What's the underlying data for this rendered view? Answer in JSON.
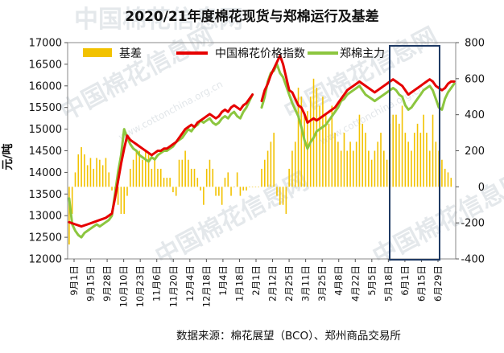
{
  "chart_data": {
    "type": "bar+line",
    "title": "2020/21年度棉花现货与郑棉运行及基差",
    "ylabel": "元/吨",
    "ylim_left": [
      12000,
      17000
    ],
    "yticks_left": [
      12000,
      12500,
      13000,
      13500,
      14000,
      14500,
      15000,
      15500,
      16000,
      16500,
      17000
    ],
    "ylim_right": [
      -400,
      800
    ],
    "yticks_right": [
      -400,
      -200,
      0,
      200,
      400,
      600,
      800
    ],
    "x_tick_labels": [
      "9月1日",
      "9月15日",
      "9月28日",
      "10月10日",
      "10月23日",
      "11月6日",
      "11月20日",
      "12月4日",
      "12月18日",
      "1月4日",
      "1月18日",
      "2月1日",
      "2月12日",
      "2月25日",
      "3月11日",
      "3月25日",
      "4月8日",
      "4月22日",
      "5月5日",
      "5月18日",
      "6月1日",
      "6月15日",
      "6月29日"
    ],
    "legend": [
      "基差",
      "中国棉花价格指数",
      "郑棉主力"
    ],
    "legend_position": "top",
    "source": "数据来源：棉花展望（BCO）、郑州商品交易所",
    "watermark": "中国棉花信息网",
    "watermark_url": "www.cottonchina.org.cn",
    "highlight_box": {
      "x_from": "6月1日",
      "x_to": "6月29日"
    },
    "series": [
      {
        "name": "中国棉花价格指数",
        "axis": "left",
        "color": "#e60000",
        "points": [
          [
            0,
            12850
          ],
          [
            2,
            12800
          ],
          [
            4,
            12750
          ],
          [
            6,
            12800
          ],
          [
            8,
            12850
          ],
          [
            10,
            12900
          ],
          [
            12,
            12950
          ],
          [
            14,
            13050
          ],
          [
            15,
            13400
          ],
          [
            16,
            13800
          ],
          [
            17,
            14200
          ],
          [
            18,
            14550
          ],
          [
            19,
            14850
          ],
          [
            20,
            14750
          ],
          [
            21,
            14700
          ],
          [
            22,
            14650
          ],
          [
            23,
            14600
          ],
          [
            24,
            14550
          ],
          [
            25,
            14500
          ],
          [
            26,
            14450
          ],
          [
            27,
            14400
          ],
          [
            28,
            14450
          ],
          [
            29,
            14500
          ],
          [
            30,
            14500
          ],
          [
            31,
            14550
          ],
          [
            32,
            14550
          ],
          [
            33,
            14600
          ],
          [
            34,
            14650
          ],
          [
            35,
            14700
          ],
          [
            36,
            14800
          ],
          [
            37,
            14900
          ],
          [
            38,
            15000
          ],
          [
            39,
            15050
          ],
          [
            40,
            15100
          ],
          [
            41,
            15050
          ],
          [
            42,
            15150
          ],
          [
            43,
            15200
          ],
          [
            44,
            15250
          ],
          [
            45,
            15300
          ],
          [
            46,
            15350
          ],
          [
            47,
            15300
          ],
          [
            48,
            15250
          ],
          [
            49,
            15300
          ],
          [
            50,
            15400
          ],
          [
            51,
            15450
          ],
          [
            52,
            15400
          ],
          [
            53,
            15500
          ],
          [
            54,
            15550
          ],
          [
            55,
            15500
          ],
          [
            56,
            15450
          ],
          [
            57,
            15550
          ],
          [
            58,
            15600
          ],
          [
            59,
            15700
          ],
          [
            60,
            15800
          ],
          [
            null,
            null
          ],
          [
            63,
            15650
          ],
          [
            64,
            15900
          ],
          [
            65,
            16050
          ],
          [
            66,
            16250
          ],
          [
            67,
            16400
          ],
          [
            68,
            16550
          ],
          [
            69,
            16700
          ],
          [
            70,
            16500
          ],
          [
            71,
            16200
          ],
          [
            72,
            15900
          ],
          [
            73,
            15850
          ],
          [
            74,
            15700
          ],
          [
            75,
            15550
          ],
          [
            76,
            15500
          ],
          [
            77,
            15350
          ],
          [
            78,
            15150
          ],
          [
            79,
            15200
          ],
          [
            80,
            15250
          ],
          [
            81,
            15200
          ],
          [
            82,
            15250
          ],
          [
            83,
            15300
          ],
          [
            84,
            15350
          ],
          [
            85,
            15400
          ],
          [
            86,
            15450
          ],
          [
            87,
            15500
          ],
          [
            88,
            15600
          ],
          [
            89,
            15700
          ],
          [
            90,
            15800
          ],
          [
            91,
            15900
          ],
          [
            92,
            15950
          ],
          [
            93,
            16000
          ],
          [
            94,
            16050
          ],
          [
            95,
            16100
          ],
          [
            96,
            16050
          ],
          [
            97,
            16000
          ],
          [
            98,
            15950
          ],
          [
            99,
            15900
          ],
          [
            100,
            15850
          ],
          [
            101,
            15900
          ],
          [
            102,
            15950
          ],
          [
            103,
            16000
          ],
          [
            104,
            16050
          ],
          [
            105,
            16100
          ],
          [
            106,
            16150
          ],
          [
            107,
            16100
          ],
          [
            108,
            16050
          ],
          [
            109,
            16000
          ],
          [
            110,
            15900
          ],
          [
            111,
            15800
          ],
          [
            112,
            15850
          ],
          [
            113,
            15900
          ],
          [
            114,
            15950
          ],
          [
            115,
            16000
          ],
          [
            116,
            16050
          ],
          [
            117,
            16100
          ],
          [
            118,
            16150
          ],
          [
            119,
            16100
          ],
          [
            120,
            16000
          ],
          [
            121,
            15950
          ],
          [
            122,
            15900
          ],
          [
            123,
            15950
          ],
          [
            124,
            16050
          ],
          [
            125,
            16100
          ],
          [
            126,
            16100
          ]
        ]
      },
      {
        "name": "郑棉主力",
        "axis": "left",
        "color": "#8cc63f",
        "points": [
          [
            0,
            13400
          ],
          [
            1,
            12800
          ],
          [
            2,
            12650
          ],
          [
            3,
            12550
          ],
          [
            4,
            12500
          ],
          [
            5,
            12600
          ],
          [
            6,
            12650
          ],
          [
            7,
            12700
          ],
          [
            8,
            12750
          ],
          [
            9,
            12800
          ],
          [
            10,
            12750
          ],
          [
            11,
            12800
          ],
          [
            12,
            12850
          ],
          [
            13,
            12900
          ],
          [
            14,
            13000
          ],
          [
            15,
            13500
          ],
          [
            16,
            14000
          ],
          [
            17,
            14400
          ],
          [
            18,
            15000
          ],
          [
            19,
            14800
          ],
          [
            20,
            14650
          ],
          [
            21,
            14550
          ],
          [
            22,
            14500
          ],
          [
            23,
            14400
          ],
          [
            24,
            14350
          ],
          [
            25,
            14300
          ],
          [
            26,
            14250
          ],
          [
            27,
            14350
          ],
          [
            28,
            14300
          ],
          [
            29,
            14400
          ],
          [
            30,
            14450
          ],
          [
            31,
            14500
          ],
          [
            32,
            14500
          ],
          [
            33,
            14550
          ],
          [
            34,
            14600
          ],
          [
            35,
            14700
          ],
          [
            36,
            14750
          ],
          [
            37,
            14800
          ],
          [
            38,
            14900
          ],
          [
            39,
            15000
          ],
          [
            40,
            14950
          ],
          [
            41,
            15050
          ],
          [
            42,
            15100
          ],
          [
            43,
            15200
          ],
          [
            44,
            15150
          ],
          [
            45,
            15200
          ],
          [
            46,
            15250
          ],
          [
            47,
            15150
          ],
          [
            48,
            15100
          ],
          [
            49,
            15150
          ],
          [
            50,
            15250
          ],
          [
            51,
            15300
          ],
          [
            52,
            15250
          ],
          [
            53,
            15350
          ],
          [
            54,
            15400
          ],
          [
            55,
            15300
          ],
          [
            56,
            15250
          ],
          [
            57,
            15400
          ],
          [
            58,
            15500
          ],
          [
            59,
            15650
          ],
          [
            60,
            15800
          ],
          [
            null,
            null
          ],
          [
            63,
            15500
          ],
          [
            64,
            15750
          ],
          [
            65,
            16100
          ],
          [
            66,
            16300
          ],
          [
            67,
            16350
          ],
          [
            68,
            16500
          ],
          [
            69,
            16300
          ],
          [
            70,
            16200
          ],
          [
            71,
            16000
          ],
          [
            72,
            15800
          ],
          [
            73,
            15600
          ],
          [
            74,
            15450
          ],
          [
            75,
            15300
          ],
          [
            76,
            15050
          ],
          [
            77,
            14750
          ],
          [
            78,
            14550
          ],
          [
            79,
            14700
          ],
          [
            80,
            14800
          ],
          [
            81,
            14950
          ],
          [
            82,
            15000
          ],
          [
            83,
            15050
          ],
          [
            84,
            15100
          ],
          [
            85,
            15200
          ],
          [
            86,
            15300
          ],
          [
            87,
            15400
          ],
          [
            88,
            15500
          ],
          [
            89,
            15650
          ],
          [
            90,
            15700
          ],
          [
            91,
            15800
          ],
          [
            92,
            15850
          ],
          [
            93,
            15900
          ],
          [
            94,
            15950
          ],
          [
            95,
            16000
          ],
          [
            96,
            15900
          ],
          [
            97,
            15800
          ],
          [
            98,
            15750
          ],
          [
            99,
            15700
          ],
          [
            100,
            15650
          ],
          [
            101,
            15700
          ],
          [
            102,
            15750
          ],
          [
            103,
            15800
          ],
          [
            104,
            15850
          ],
          [
            105,
            15900
          ],
          [
            106,
            15950
          ],
          [
            107,
            15900
          ],
          [
            108,
            15800
          ],
          [
            109,
            15750
          ],
          [
            110,
            15550
          ],
          [
            111,
            15450
          ],
          [
            112,
            15500
          ],
          [
            113,
            15600
          ],
          [
            114,
            15700
          ],
          [
            115,
            15800
          ],
          [
            116,
            15900
          ],
          [
            117,
            15950
          ],
          [
            118,
            16000
          ],
          [
            119,
            15900
          ],
          [
            120,
            15700
          ],
          [
            121,
            15500
          ],
          [
            122,
            15450
          ],
          [
            123,
            15700
          ],
          [
            124,
            15850
          ],
          [
            125,
            15950
          ],
          [
            126,
            16050
          ]
        ]
      },
      {
        "name": "基差",
        "axis": "right",
        "color": "#f2c200",
        "type": "bar",
        "values": [
          -320,
          -150,
          80,
          180,
          220,
          180,
          120,
          160,
          100,
          160,
          150,
          120,
          160,
          80,
          -20,
          -50,
          -100,
          -150,
          -150,
          -50,
          100,
          150,
          200,
          200,
          150,
          200,
          180,
          100,
          150,
          100,
          100,
          50,
          50,
          50,
          -30,
          -50,
          150,
          150,
          200,
          150,
          100,
          100,
          50,
          -20,
          -100,
          100,
          150,
          100,
          -50,
          -50,
          -100,
          50,
          80,
          -50,
          0,
          80,
          -50,
          -20,
          -20,
          0,
          0,
          0,
          0,
          100,
          150,
          200,
          250,
          300,
          -50,
          -100,
          -100,
          -150,
          100,
          200,
          250,
          550,
          500,
          400,
          420,
          500,
          600,
          550,
          450,
          500,
          400,
          350,
          450,
          300,
          250,
          200,
          300,
          200,
          250,
          200,
          250,
          400,
          350,
          300,
          200,
          150,
          200,
          250,
          300,
          200,
          150,
          350,
          400,
          400,
          350,
          450,
          300,
          250,
          200,
          300,
          350,
          300,
          400,
          300,
          200,
          400,
          250,
          200,
          150,
          100,
          80,
          50
        ]
      }
    ]
  }
}
